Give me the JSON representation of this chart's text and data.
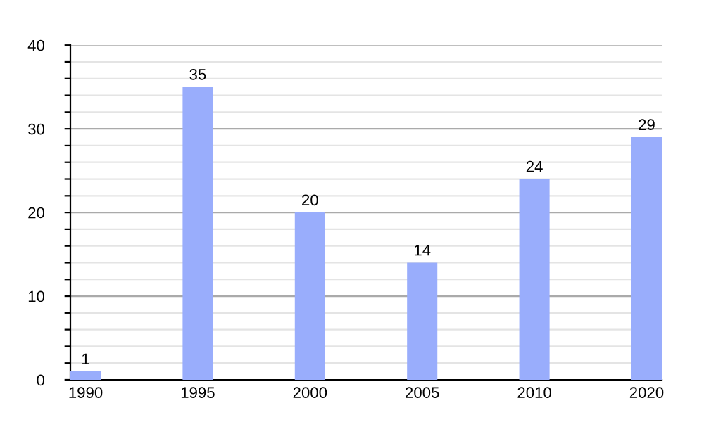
{
  "chart_data": {
    "type": "bar",
    "categories": [
      "1990",
      "1995",
      "2000",
      "2005",
      "2010",
      "2020"
    ],
    "values": [
      1,
      35,
      20,
      14,
      24,
      29
    ],
    "color": "#99adfc",
    "ylim": [
      0,
      40
    ],
    "yticks": [
      0,
      {
        "value": 2,
        "label": null
      },
      {
        "value": 4,
        "label": null
      },
      {
        "value": 6,
        "label": null
      },
      {
        "value": 8,
        "label": null
      },
      10,
      {
        "value": 12,
        "label": null
      },
      {
        "value": 14,
        "label": null
      },
      {
        "value": 16,
        "label": null
      },
      {
        "value": 18,
        "label": null
      },
      20,
      {
        "value": 22,
        "label": null
      },
      {
        "value": 24,
        "label": null
      },
      {
        "value": 26,
        "label": null
      },
      {
        "value": 28,
        "label": null
      },
      30,
      {
        "value": 32,
        "label": null
      },
      {
        "value": 34,
        "label": null
      },
      {
        "value": 36,
        "label": null
      },
      {
        "value": 38,
        "label": null
      },
      40
    ],
    "grid": "y",
    "data_labels": true,
    "legend": false
  }
}
